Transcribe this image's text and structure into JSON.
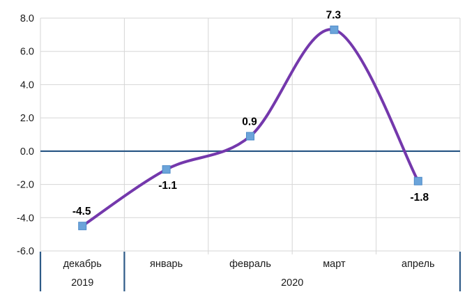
{
  "chart_data": {
    "type": "line",
    "title": "",
    "xlabel": "",
    "ylabel": "",
    "categories": [
      "декабрь",
      "январь",
      "февраль",
      "март",
      "апрель"
    ],
    "values": [
      -4.5,
      -1.1,
      0.9,
      7.3,
      -1.8
    ],
    "data_labels": [
      "-4.5",
      "-1.1",
      "0.9",
      "7.3",
      "-1.8"
    ],
    "label_placement": [
      "above",
      "below",
      "above",
      "above",
      "below"
    ],
    "year_groups": [
      {
        "label": "2019",
        "start": 0,
        "end": 1
      },
      {
        "label": "2020",
        "start": 1,
        "end": 5
      }
    ],
    "y_ticks": [
      8.0,
      6.0,
      4.0,
      2.0,
      0.0,
      -2.0,
      -4.0,
      -6.0
    ],
    "y_tick_labels": [
      "8.0",
      "6.0",
      "4.0",
      "2.0",
      "0.0",
      "-2.0",
      "-4.0",
      "-6.0"
    ],
    "ylim": [
      -6,
      8
    ],
    "grid": true,
    "legend": "none",
    "line_smooth": true,
    "marker_shape": "square",
    "colors": {
      "line": "#7438AC",
      "marker_fill": "#6BA4DA",
      "marker_border": "#4E8BC8",
      "zero_line": "#2D5A87",
      "group_separator": "#2D5A87",
      "gridline": "#D6D6D6",
      "data_label_text": "#000000",
      "tick_text": "#1A1A1A"
    }
  }
}
